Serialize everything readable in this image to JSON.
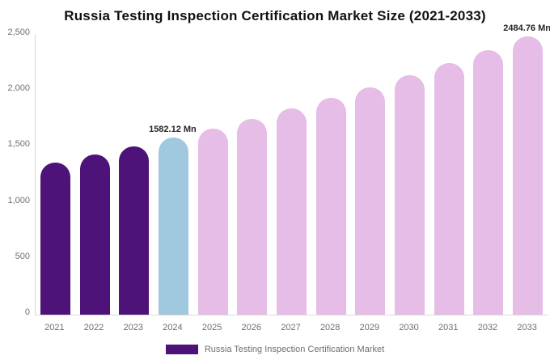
{
  "title": "Russia Testing Inspection Certification Market Size (2021-2033)",
  "colors": {
    "historical_bar": "#4D1379",
    "current_bar": "#A0C8DE",
    "forecast_bar": "#E5BDE7",
    "axis_line": "#D9D9D9",
    "tick_label": "#6F6F6F",
    "title_text": "#111111",
    "annotation_text": "#262626"
  },
  "chart_data": {
    "type": "bar",
    "title": "Russia Testing Inspection Certification Market Size (2021-2033)",
    "xlabel": "",
    "ylabel": "",
    "ylim": [
      0,
      2500
    ],
    "y_tick_step": 500,
    "y_tick_labels": [
      "0",
      "500",
      "1,000",
      "1,500",
      "2,000",
      "2,500"
    ],
    "grid": false,
    "categories": [
      "2021",
      "2022",
      "2023",
      "2024",
      "2025",
      "2026",
      "2027",
      "2028",
      "2029",
      "2030",
      "2031",
      "2032",
      "2033"
    ],
    "series": [
      {
        "name": "Russia Testing Inspection Certification Market",
        "unit": "Mn",
        "values": [
          1361,
          1431,
          1505,
          1582.12,
          1663,
          1749,
          1839,
          1933,
          2032,
          2137,
          2247,
          2362,
          2484.76
        ]
      }
    ],
    "bar_colors": [
      "#4D1379",
      "#4D1379",
      "#4D1379",
      "#A0C8DE",
      "#E5BDE7",
      "#E5BDE7",
      "#E5BDE7",
      "#E5BDE7",
      "#E5BDE7",
      "#E5BDE7",
      "#E5BDE7",
      "#E5BDE7",
      "#E5BDE7"
    ],
    "annotations": [
      {
        "category": "2024",
        "text": "1582.12 Mn"
      },
      {
        "category": "2033",
        "text": "2484.76 Mn"
      }
    ],
    "legend": {
      "position": "bottom",
      "label": "Russia Testing Inspection Certification Market",
      "swatch_color": "#4D1379"
    }
  }
}
